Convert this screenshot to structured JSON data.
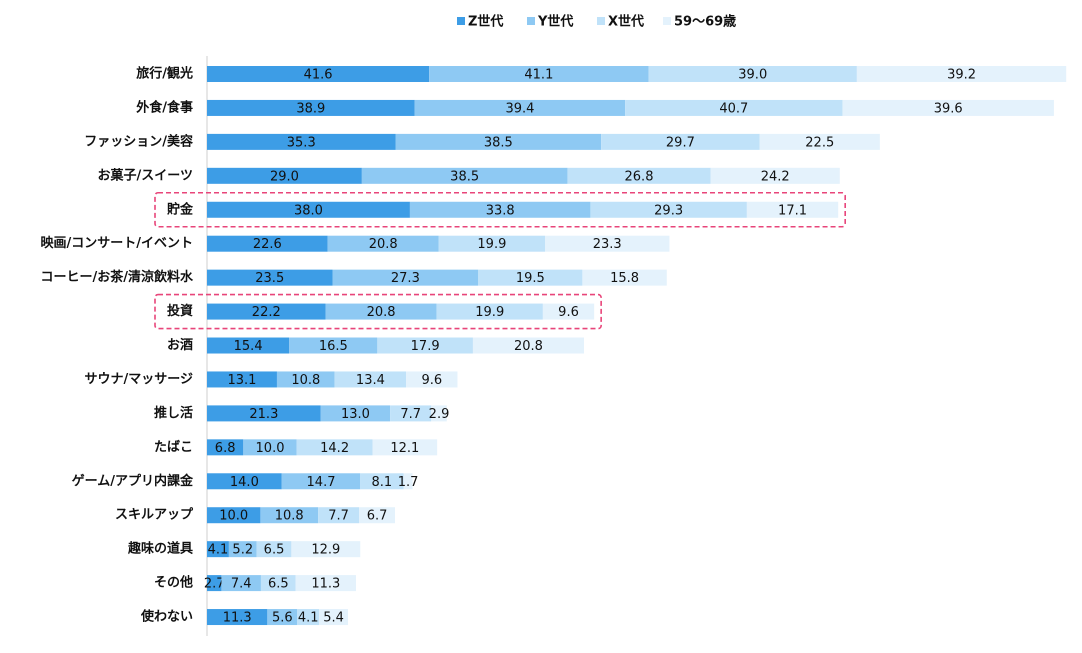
{
  "chart_data": {
    "type": "stacked-barh",
    "categories": [
      "旅行/観光",
      "外食/食事",
      "ファッション/美容",
      "お菓子/スイーツ",
      "貯金",
      "映画/コンサート/イベント",
      "コーヒー/お茶/清涼飲料水",
      "投資",
      "お酒",
      "サウナ/マッサージ",
      "推し活",
      "たばこ",
      "ゲーム/アプリ内課金",
      "スキルアップ",
      "趣味の道具",
      "その他",
      "使わない"
    ],
    "series": [
      {
        "name": "Z世代",
        "color": "#3d9de6",
        "values": [
          41.6,
          38.9,
          35.3,
          29.0,
          38.0,
          22.6,
          23.5,
          22.2,
          15.4,
          13.1,
          21.3,
          6.8,
          14.0,
          10.0,
          4.1,
          2.7,
          11.3
        ],
        "value_labels": [
          "41.6",
          "38.9",
          "35.3",
          "29.0",
          "38.0",
          "22.6",
          "23.5",
          "22.2",
          "15.4",
          "13.1",
          "21.3",
          "6.8",
          "14.0",
          "10.0",
          "4.1",
          "2.7",
          "11.3"
        ]
      },
      {
        "name": "Y世代",
        "color": "#8ec9f3",
        "values": [
          41.1,
          39.4,
          38.5,
          38.5,
          33.8,
          20.8,
          27.3,
          20.8,
          16.5,
          10.8,
          13.0,
          10.0,
          14.7,
          10.8,
          5.2,
          7.4,
          5.6
        ],
        "value_labels": [
          "41.1",
          "39.4",
          "38.5",
          "38.5",
          "33.8",
          "20.8",
          "27.3",
          "20.8",
          "16.5",
          "10.8",
          "13.0",
          "10.0",
          "14.7",
          "10.8",
          "5.2",
          "7.4",
          "5.6"
        ]
      },
      {
        "name": "X世代",
        "color": "#c0e2f9",
        "values": [
          39.0,
          40.7,
          29.7,
          26.8,
          29.3,
          19.9,
          19.5,
          19.9,
          17.9,
          13.4,
          7.7,
          14.2,
          8.1,
          7.7,
          6.5,
          6.5,
          4.1
        ],
        "value_labels": [
          "39.0",
          "40.7",
          "29.7",
          "26.8",
          "29.3",
          "19.9",
          "19.5",
          "19.9",
          "17.9",
          "13.4",
          "7.7",
          "14.2",
          "8.1",
          "7.7",
          "6.5",
          "6.5",
          "4.1"
        ]
      },
      {
        "name": "59〜69歳",
        "color": "#e4f2fc",
        "values": [
          39.2,
          39.6,
          22.5,
          24.2,
          17.1,
          23.3,
          15.8,
          9.6,
          20.8,
          9.6,
          2.9,
          12.1,
          1.7,
          6.7,
          12.9,
          11.3,
          5.4
        ],
        "value_labels": [
          "39.2",
          "39.6",
          "22.5",
          "24.2",
          "17.1",
          "23.3",
          "15.8",
          "9.6",
          "20.8",
          "9.6",
          "2.9",
          "12.1",
          "1.7",
          "6.7",
          "12.9",
          "11.3",
          "5.4"
        ]
      }
    ],
    "highlight": [
      4,
      7
    ],
    "highlight_color": "#e8457a"
  }
}
